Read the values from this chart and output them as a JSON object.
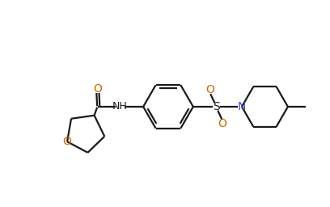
{
  "bg_color": "#ffffff",
  "line_color": "#1a1a1a",
  "n_color": "#4444cc",
  "o_color": "#cc6600",
  "s_color": "#1a1a1a",
  "lw": 1.6,
  "lw_double": 1.6,
  "figsize": [
    4.08,
    2.56
  ],
  "dpi": 100,
  "xlim": [
    0,
    10.2
  ],
  "ylim": [
    0,
    6.4
  ]
}
